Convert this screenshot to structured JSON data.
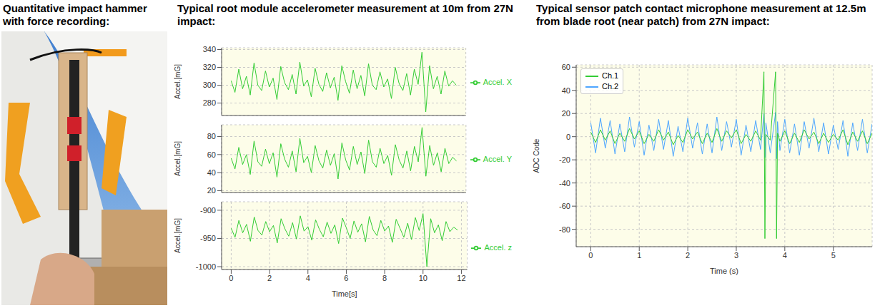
{
  "panel_titles": [
    "Quantitative impact hammer with force recording:",
    "Typical root module accelerometer measurement at 10m from 27N impact:",
    "Typical sensor patch contact microphone measurement at 12.5m from blade root (near patch) from 27N impact:"
  ],
  "chart_data": [
    {
      "type": "line",
      "ylabel": "Accel.[mG]",
      "grid": true,
      "legend": "right",
      "tick_labels": "y",
      "xlim": [
        -0.5,
        12.3
      ],
      "xticks": [
        0,
        2,
        4,
        6,
        8,
        10,
        12
      ],
      "ylim": [
        266,
        342
      ],
      "yticks": [
        280,
        300,
        320,
        340
      ],
      "x": [
        0,
        0.2,
        0.4,
        0.6,
        0.8,
        1.0,
        1.2,
        1.4,
        1.6,
        1.8,
        2.0,
        2.2,
        2.4,
        2.6,
        2.8,
        3.0,
        3.2,
        3.4,
        3.6,
        3.8,
        4.0,
        4.2,
        4.4,
        4.6,
        4.8,
        5.0,
        5.2,
        5.4,
        5.6,
        5.8,
        6.0,
        6.2,
        6.4,
        6.6,
        6.8,
        7.0,
        7.2,
        7.4,
        7.6,
        7.8,
        8.0,
        8.2,
        8.4,
        8.6,
        8.8,
        9.0,
        9.2,
        9.4,
        9.6,
        9.8,
        10.0,
        10.2,
        10.4,
        10.6,
        10.8,
        11.0,
        11.2,
        11.4,
        11.6,
        11.8
      ],
      "series": [
        {
          "name": "Accel. X",
          "color": "#33cc33",
          "values": [
            305,
            292,
            318,
            296,
            310,
            289,
            325,
            300,
            294,
            316,
            298,
            308,
            284,
            321,
            303,
            295,
            312,
            290,
            326,
            299,
            306,
            287,
            319,
            301,
            293,
            314,
            297,
            309,
            283,
            322,
            304,
            291,
            317,
            296,
            311,
            288,
            324,
            300,
            295,
            315,
            298,
            307,
            285,
            320,
            302,
            294,
            313,
            289,
            318,
            301,
            337,
            270,
            322,
            296,
            310,
            290,
            316,
            299,
            305,
            300
          ]
        }
      ]
    },
    {
      "type": "line",
      "ylabel": "Accel.[mG]",
      "grid": true,
      "legend": "right",
      "tick_labels": "y",
      "xlim": [
        -0.5,
        12.3
      ],
      "xticks": [
        0,
        2,
        4,
        6,
        8,
        10,
        12
      ],
      "ylim": [
        18,
        93
      ],
      "yticks": [
        20,
        40,
        60,
        80
      ],
      "x": [
        0,
        0.2,
        0.4,
        0.6,
        0.8,
        1.0,
        1.2,
        1.4,
        1.6,
        1.8,
        2.0,
        2.2,
        2.4,
        2.6,
        2.8,
        3.0,
        3.2,
        3.4,
        3.6,
        3.8,
        4.0,
        4.2,
        4.4,
        4.6,
        4.8,
        5.0,
        5.2,
        5.4,
        5.6,
        5.8,
        6.0,
        6.2,
        6.4,
        6.6,
        6.8,
        7.0,
        7.2,
        7.4,
        7.6,
        7.8,
        8.0,
        8.2,
        8.4,
        8.6,
        8.8,
        9.0,
        9.2,
        9.4,
        9.6,
        9.8,
        10.0,
        10.2,
        10.4,
        10.6,
        10.8,
        11.0,
        11.2,
        11.4,
        11.6,
        11.8
      ],
      "series": [
        {
          "name": "Accel. Y",
          "color": "#33cc33",
          "values": [
            56,
            44,
            68,
            49,
            60,
            38,
            75,
            52,
            47,
            66,
            50,
            62,
            35,
            72,
            55,
            46,
            64,
            41,
            78,
            51,
            58,
            40,
            70,
            53,
            45,
            65,
            48,
            61,
            33,
            73,
            54,
            43,
            69,
            49,
            63,
            39,
            76,
            52,
            46,
            67,
            50,
            59,
            37,
            71,
            54,
            45,
            64,
            42,
            69,
            52,
            90,
            36,
            70,
            48,
            62,
            41,
            67,
            50,
            57,
            53
          ]
        }
      ]
    },
    {
      "type": "line",
      "ylabel": "Accel.[mG]",
      "xlabel": "Time[s]",
      "grid": true,
      "legend": "right",
      "tick_labels": true,
      "xlim": [
        -0.5,
        12.3
      ],
      "xticks": [
        0,
        2,
        4,
        6,
        8,
        10,
        12
      ],
      "ylim": [
        -1005,
        -885
      ],
      "yticks": [
        -1000,
        -950,
        -900
      ],
      "x": [
        0,
        0.2,
        0.4,
        0.6,
        0.8,
        1.0,
        1.2,
        1.4,
        1.6,
        1.8,
        2.0,
        2.2,
        2.4,
        2.6,
        2.8,
        3.0,
        3.2,
        3.4,
        3.6,
        3.8,
        4.0,
        4.2,
        4.4,
        4.6,
        4.8,
        5.0,
        5.2,
        5.4,
        5.6,
        5.8,
        6.0,
        6.2,
        6.4,
        6.6,
        6.8,
        7.0,
        7.2,
        7.4,
        7.6,
        7.8,
        8.0,
        8.2,
        8.4,
        8.6,
        8.8,
        9.0,
        9.2,
        9.4,
        9.6,
        9.8,
        10.0,
        10.2,
        10.4,
        10.6,
        10.8,
        11.0,
        11.2,
        11.4,
        11.6,
        11.8
      ],
      "series": [
        {
          "name": "Accel. z",
          "color": "#33cc33",
          "values": [
            -932,
            -948,
            -918,
            -940,
            -925,
            -955,
            -912,
            -936,
            -944,
            -920,
            -938,
            -927,
            -958,
            -915,
            -933,
            -946,
            -922,
            -951,
            -910,
            -937,
            -929,
            -953,
            -917,
            -934,
            -947,
            -921,
            -941,
            -926,
            -959,
            -914,
            -931,
            -950,
            -919,
            -939,
            -924,
            -956,
            -911,
            -935,
            -945,
            -918,
            -937,
            -928,
            -957,
            -916,
            -932,
            -948,
            -923,
            -952,
            -913,
            -936,
            -906,
            -1000,
            -915,
            -940,
            -926,
            -954,
            -920,
            -938,
            -930,
            -935
          ]
        }
      ]
    },
    {
      "type": "line",
      "ylabel": "ADC Code",
      "xlabel": "Time (s)",
      "grid": true,
      "legend": "upper left",
      "tick_labels": true,
      "xlim": [
        -0.3,
        5.8
      ],
      "xticks": [
        0,
        1,
        2,
        3,
        4,
        5
      ],
      "ylim": [
        -95,
        62
      ],
      "yticks": [
        -80,
        -60,
        -40,
        -20,
        0,
        20,
        40,
        60
      ],
      "x": [
        0.0,
        0.1,
        0.2,
        0.3,
        0.4,
        0.5,
        0.6,
        0.7,
        0.8,
        0.9,
        1.0,
        1.1,
        1.2,
        1.3,
        1.4,
        1.5,
        1.6,
        1.7,
        1.8,
        1.9,
        2.0,
        2.1,
        2.2,
        2.3,
        2.4,
        2.5,
        2.6,
        2.7,
        2.8,
        2.9,
        3.0,
        3.1,
        3.2,
        3.3,
        3.4,
        3.5,
        3.57,
        3.59,
        3.61,
        3.7,
        3.81,
        3.83,
        3.85,
        3.9,
        4.0,
        4.1,
        4.2,
        4.3,
        4.4,
        4.5,
        4.6,
        4.7,
        4.8,
        4.9,
        5.0,
        5.1,
        5.2,
        5.3,
        5.4,
        5.5,
        5.6,
        5.7,
        5.8
      ],
      "series": [
        {
          "name": "Ch.1",
          "color": "#33cc33",
          "values": [
            4,
            -5,
            6,
            -3,
            5,
            -6,
            3,
            -4,
            7,
            -2,
            5,
            -6,
            2,
            -4,
            6,
            -3,
            4,
            -7,
            1,
            -5,
            6,
            -2,
            4,
            -6,
            3,
            -5,
            7,
            -4,
            5,
            -1,
            6,
            -6,
            2,
            -4,
            5,
            -3,
            56,
            -88,
            2,
            -3,
            56,
            -88,
            3,
            -4,
            5,
            -6,
            3,
            -5,
            6,
            -2,
            4,
            -6,
            3,
            -5,
            2,
            -3,
            6,
            -7,
            4,
            -4,
            5,
            -6,
            3
          ]
        },
        {
          "name": "Ch.2",
          "color": "#4da6ff",
          "values": [
            12,
            -14,
            16,
            -10,
            14,
            -15,
            11,
            -13,
            17,
            -9,
            13,
            -16,
            10,
            -12,
            15,
            -11,
            14,
            -17,
            9,
            -13,
            16,
            -10,
            12,
            -15,
            11,
            -14,
            17,
            -12,
            13,
            -9,
            15,
            -16,
            10,
            -13,
            14,
            -11,
            20,
            -18,
            12,
            -14,
            21,
            -19,
            13,
            -12,
            15,
            -14,
            11,
            -16,
            13,
            -10,
            16,
            -13,
            12,
            -15,
            10,
            -11,
            14,
            -17,
            12,
            -12,
            15,
            -14,
            11
          ]
        }
      ]
    }
  ]
}
